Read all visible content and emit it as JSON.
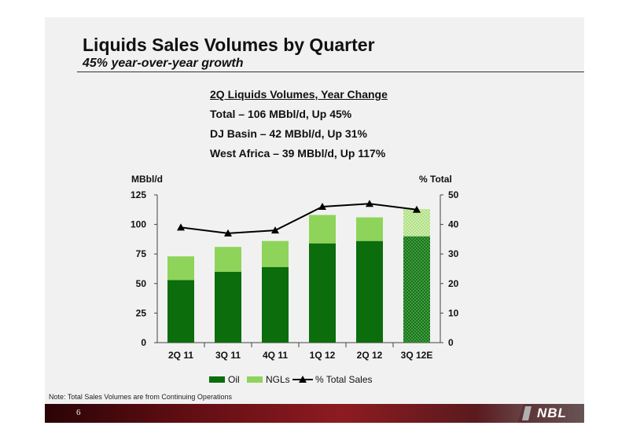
{
  "slide": {
    "title": "Liquids Sales Volumes by Quarter",
    "subtitle": "45% year-over-year growth",
    "highlights_heading": "2Q Liquids Volumes, Year Change",
    "highlights": [
      "Total – 106 MBbl/d, Up 45%",
      "DJ Basin – 42 MBbl/d, Up 31%",
      "West Africa – 39 MBbl/d, Up 117%"
    ],
    "note": "Note: Total Sales Volumes are from Continuing Operations",
    "page_number": "6",
    "logo_text": "NBL"
  },
  "colors": {
    "oil": "#0b6d0b",
    "ngl": "#8fd45a",
    "line": "#000000",
    "footer": "#8d1b21"
  },
  "chart_data": {
    "type": "bar",
    "stacked": true,
    "categories": [
      "2Q 11",
      "3Q 11",
      "4Q 11",
      "1Q 12",
      "2Q 12",
      "3Q 12E"
    ],
    "estimated_category": "3Q 12E",
    "series": [
      {
        "name": "Oil",
        "axis": "left",
        "values": [
          53,
          60,
          64,
          84,
          86,
          90
        ]
      },
      {
        "name": "NGLs",
        "axis": "left",
        "values": [
          20,
          21,
          22,
          24,
          20,
          23
        ]
      },
      {
        "name": "% Total Sales",
        "type": "line",
        "axis": "right",
        "values": [
          39,
          37,
          38,
          46,
          47,
          45
        ]
      }
    ],
    "ylabel_left": "MBbl/d",
    "ylabel_right": "% Total",
    "ylim_left": [
      0,
      125
    ],
    "yticks_left": [
      0,
      25,
      50,
      75,
      100,
      125
    ],
    "ylim_right": [
      0,
      50
    ],
    "yticks_right": [
      0,
      10,
      20,
      30,
      40,
      50
    ],
    "grid": false,
    "legend_position": "bottom"
  }
}
